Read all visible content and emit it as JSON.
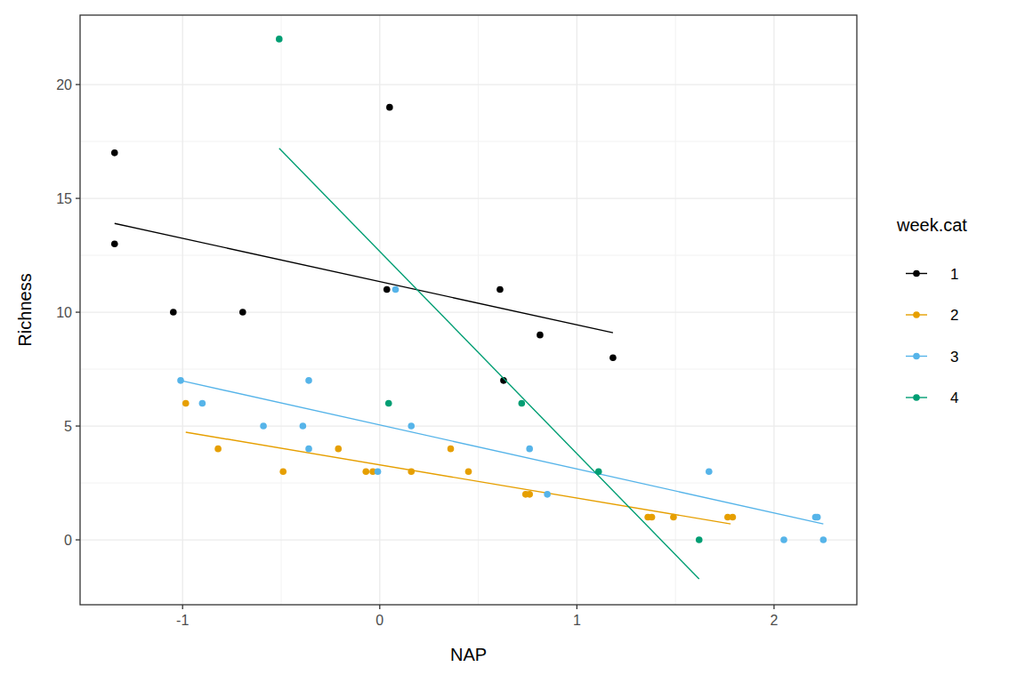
{
  "chart_data": {
    "type": "scatter",
    "x_label": "NAP",
    "y_label": "Richness",
    "legend_title": "week.cat",
    "legend": "right",
    "grid": true,
    "xlim": [
      -1.52,
      2.42
    ],
    "ylim": [
      -2.85,
      23.05
    ],
    "xticks": [
      -1,
      0,
      1,
      2
    ],
    "yticks": [
      0,
      5,
      10,
      15,
      20
    ],
    "series": [
      {
        "name": "1",
        "color": "#000000",
        "marker": "circle",
        "x": [
          -1.345,
          -1.345,
          -1.047,
          -0.695,
          0.036,
          0.05,
          0.61,
          0.628,
          0.813,
          1.183
        ],
        "values": [
          17,
          13,
          10,
          10,
          11,
          19,
          11,
          7,
          9,
          8
        ],
        "trend": {
          "x": [
            -1.345,
            1.183
          ],
          "values": [
            13.9,
            9.1
          ]
        }
      },
      {
        "name": "2",
        "color": "#E69F00",
        "marker": "circle",
        "x": [
          -0.984,
          -0.82,
          -0.49,
          -0.21,
          -0.07,
          -0.035,
          0.16,
          0.36,
          0.45,
          0.74,
          0.76,
          1.36,
          1.38,
          1.49,
          1.765,
          1.79
        ],
        "values": [
          6,
          4,
          3,
          4,
          3,
          3,
          3,
          4,
          3,
          2,
          2,
          1,
          1,
          1,
          1,
          1
        ],
        "trend": {
          "x": [
            -0.984,
            1.78
          ],
          "values": [
            4.73,
            0.7
          ]
        }
      },
      {
        "name": "3",
        "color": "#56B4E9",
        "marker": "circle",
        "x": [
          -1.01,
          -0.9,
          -0.59,
          -0.39,
          -0.36,
          -0.36,
          -0.01,
          0.08,
          0.16,
          0.76,
          0.85,
          1.67,
          2.05,
          2.21,
          2.22,
          2.25
        ],
        "values": [
          7,
          6,
          5,
          5,
          7,
          4,
          3,
          11,
          5,
          4,
          2,
          3,
          0,
          1,
          1,
          0
        ],
        "trend": {
          "x": [
            -1.01,
            2.25
          ],
          "values": [
            7.0,
            0.7
          ]
        }
      },
      {
        "name": "4",
        "color": "#009E73",
        "marker": "circle",
        "x": [
          -0.51,
          0.045,
          0.72,
          1.11,
          1.62
        ],
        "values": [
          22,
          6,
          6,
          3,
          0
        ],
        "trend": {
          "x": [
            -0.51,
            1.62
          ],
          "values": [
            17.2,
            -1.72
          ]
        }
      }
    ]
  }
}
